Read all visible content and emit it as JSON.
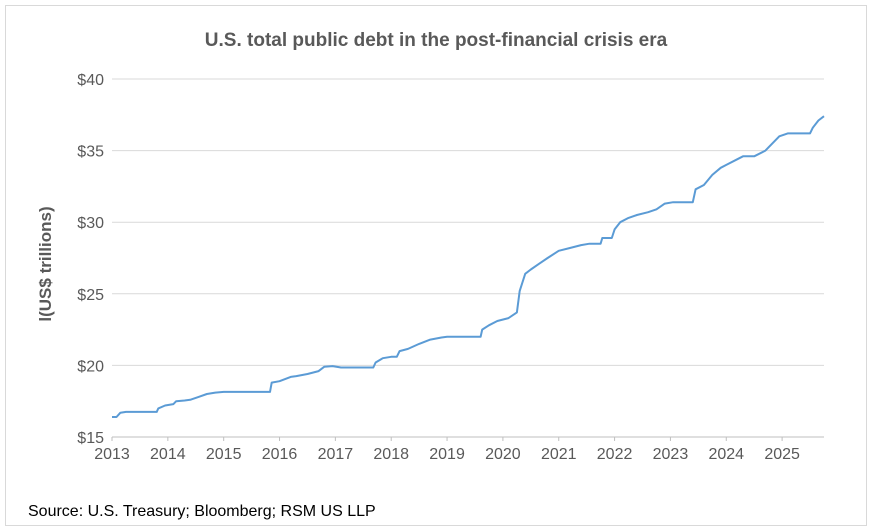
{
  "chart_data": {
    "type": "line",
    "title": "U.S. total public debt in the post-financial crisis era",
    "ylabel": "l(US$ trillions)",
    "xlabel": "",
    "ylim": [
      15,
      40
    ],
    "xlim": [
      2013,
      2025.75
    ],
    "y_ticks": [
      15,
      20,
      25,
      30,
      35,
      40
    ],
    "y_tick_labels": [
      "$15",
      "$20",
      "$25",
      "$30",
      "$35",
      "$40"
    ],
    "x_ticks": [
      2013,
      2014,
      2015,
      2016,
      2017,
      2018,
      2019,
      2020,
      2021,
      2022,
      2023,
      2024,
      2025
    ],
    "x_tick_labels": [
      "2013",
      "2014",
      "2015",
      "2016",
      "2017",
      "2018",
      "2019",
      "2020",
      "2021",
      "2022",
      "2023",
      "2024",
      "2025"
    ],
    "grid": true,
    "series": [
      {
        "name": "U.S. total public debt",
        "color": "#5b9bd5",
        "x": [
          2013.0,
          2013.08,
          2013.15,
          2013.25,
          2013.35,
          2013.5,
          2013.6,
          2013.8,
          2013.83,
          2013.95,
          2014.1,
          2014.15,
          2014.3,
          2014.4,
          2014.55,
          2014.7,
          2014.85,
          2015.0,
          2015.15,
          2015.3,
          2015.5,
          2015.7,
          2015.83,
          2015.86,
          2016.0,
          2016.2,
          2016.3,
          2016.5,
          2016.7,
          2016.8,
          2016.95,
          2017.1,
          2017.2,
          2017.5,
          2017.68,
          2017.72,
          2017.85,
          2018.0,
          2018.1,
          2018.15,
          2018.3,
          2018.5,
          2018.7,
          2018.9,
          2019.0,
          2019.1,
          2019.3,
          2019.6,
          2019.63,
          2019.75,
          2019.9,
          2020.1,
          2020.25,
          2020.3,
          2020.4,
          2020.5,
          2020.65,
          2020.8,
          2021.0,
          2021.2,
          2021.4,
          2021.55,
          2021.75,
          2021.78,
          2021.95,
          2022.0,
          2022.1,
          2022.25,
          2022.4,
          2022.6,
          2022.75,
          2022.9,
          2023.05,
          2023.4,
          2023.45,
          2023.6,
          2023.75,
          2023.9,
          2024.0,
          2024.2,
          2024.3,
          2024.5,
          2024.7,
          2024.8,
          2024.95,
          2025.1,
          2025.5,
          2025.55,
          2025.65,
          2025.75
        ],
        "y": [
          16.4,
          16.4,
          16.7,
          16.75,
          16.75,
          16.75,
          16.75,
          16.75,
          17.0,
          17.2,
          17.3,
          17.5,
          17.55,
          17.6,
          17.8,
          18.0,
          18.1,
          18.15,
          18.15,
          18.15,
          18.15,
          18.15,
          18.15,
          18.8,
          18.9,
          19.2,
          19.25,
          19.4,
          19.6,
          19.9,
          19.95,
          19.85,
          19.85,
          19.85,
          19.85,
          20.2,
          20.5,
          20.6,
          20.6,
          21.0,
          21.15,
          21.5,
          21.8,
          21.95,
          22.0,
          22.0,
          22.0,
          22.0,
          22.5,
          22.8,
          23.1,
          23.3,
          23.7,
          25.2,
          26.4,
          26.7,
          27.1,
          27.5,
          28.0,
          28.2,
          28.4,
          28.5,
          28.5,
          28.9,
          28.9,
          29.5,
          30.0,
          30.3,
          30.5,
          30.7,
          30.9,
          31.3,
          31.4,
          31.4,
          32.3,
          32.6,
          33.3,
          33.8,
          34.0,
          34.4,
          34.6,
          34.6,
          35.0,
          35.4,
          36.0,
          36.2,
          36.2,
          36.6,
          37.1,
          37.4
        ]
      }
    ]
  },
  "source_text": "Source: U.S. Treasury; Bloomberg; RSM US LLP"
}
